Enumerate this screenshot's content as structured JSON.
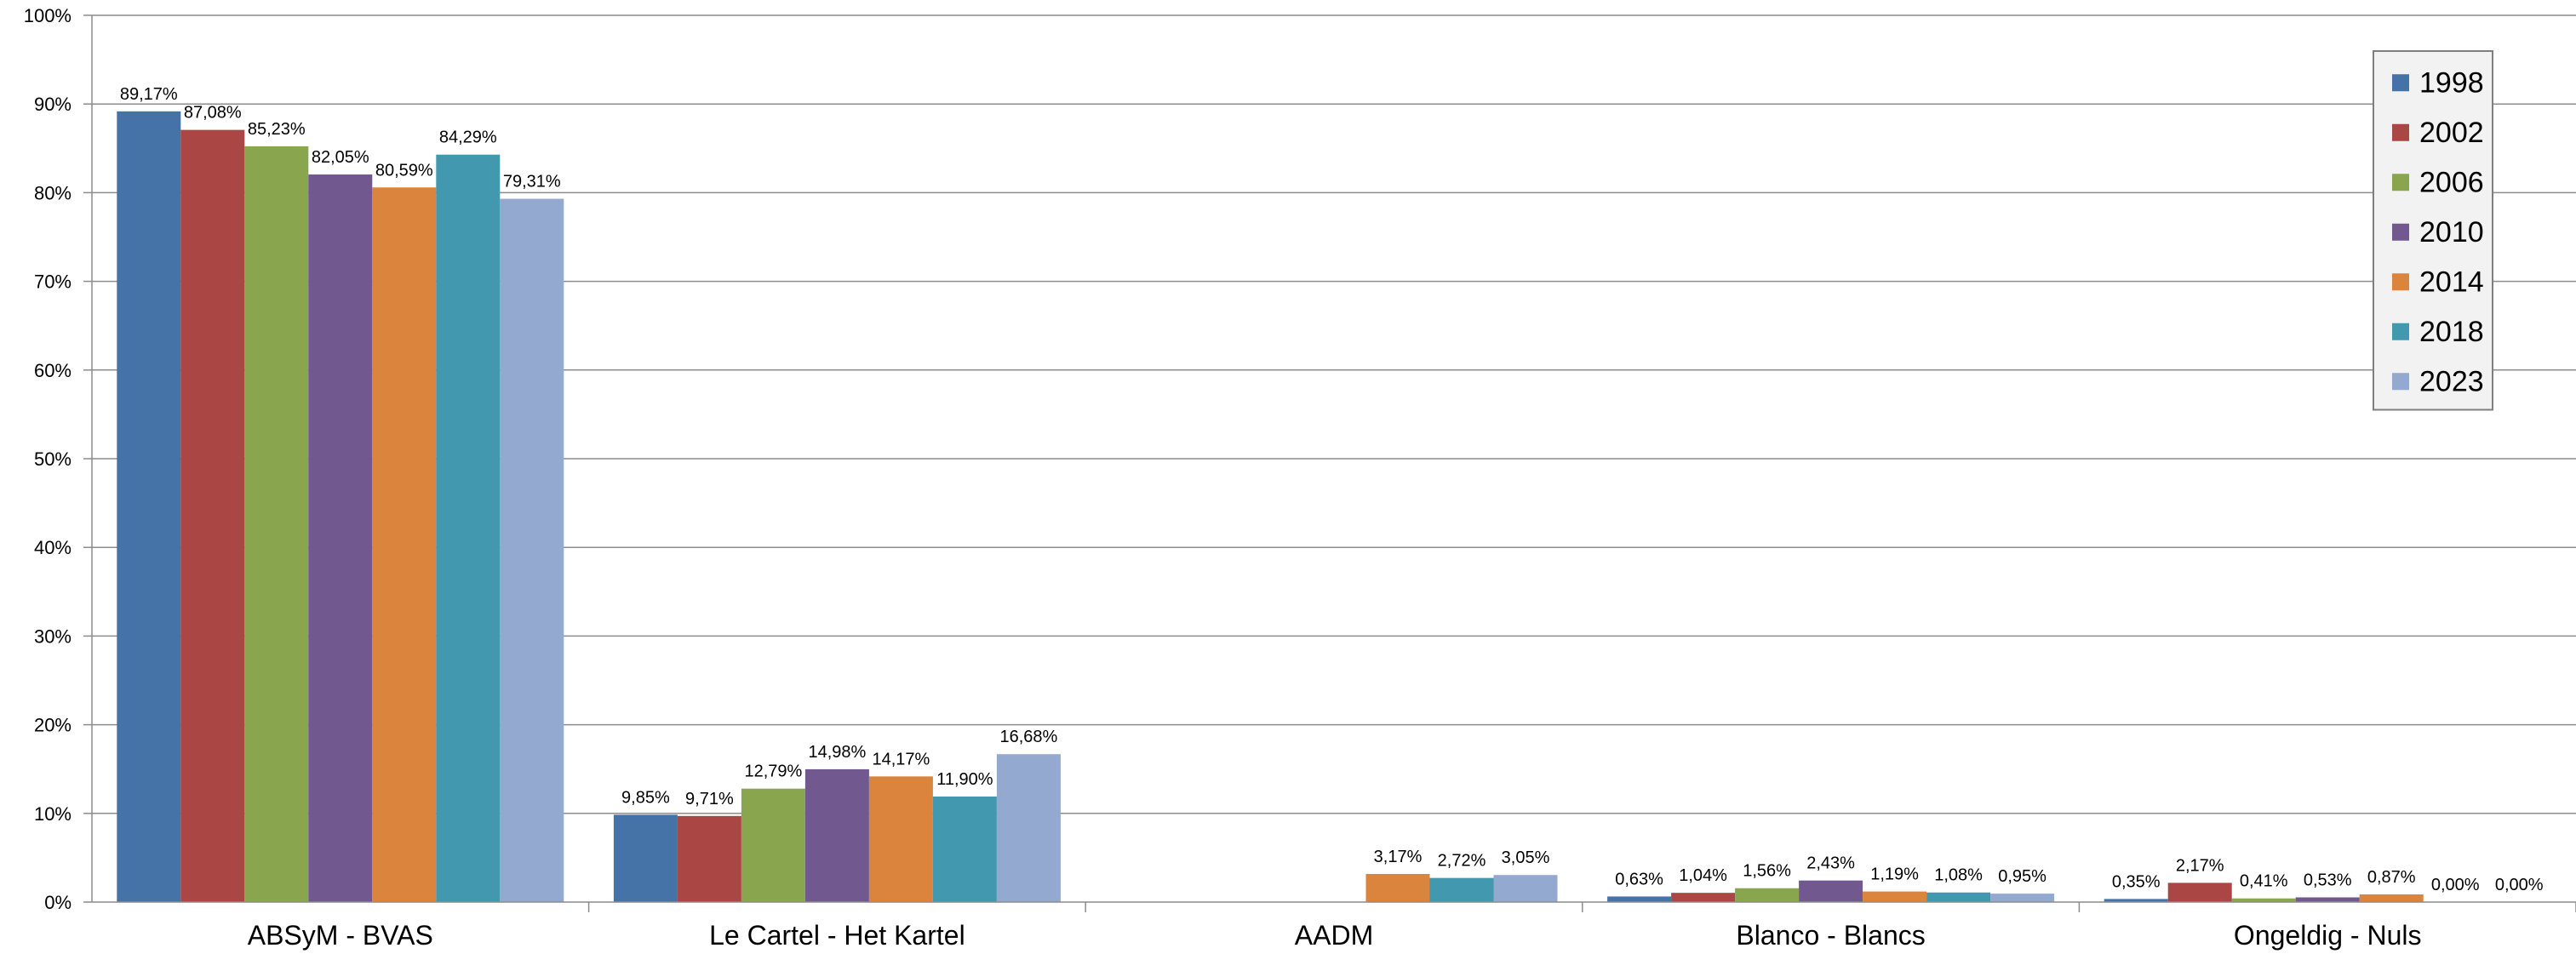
{
  "chart_data": {
    "type": "bar",
    "categories": [
      "ABSyM - BVAS",
      "Le Cartel - Het Kartel",
      "AADM",
      "Blanco - Blancs",
      "Ongeldig - Nuls"
    ],
    "series": [
      {
        "name": "1998",
        "color": "#4572A7",
        "values": [
          89.17,
          9.85,
          null,
          0.63,
          0.35
        ],
        "labels": [
          "89,17%",
          "9,85%",
          "",
          "0,63%",
          "0,35%"
        ]
      },
      {
        "name": "2002",
        "color": "#AA4643",
        "values": [
          87.08,
          9.71,
          null,
          1.04,
          2.17
        ],
        "labels": [
          "87,08%",
          "9,71%",
          "",
          "1,04%",
          "2,17%"
        ]
      },
      {
        "name": "2006",
        "color": "#89A54E",
        "values": [
          85.23,
          12.79,
          null,
          1.56,
          0.41
        ],
        "labels": [
          "85,23%",
          "12,79%",
          "",
          "1,56%",
          "0,41%"
        ]
      },
      {
        "name": "2010",
        "color": "#71588F",
        "values": [
          82.05,
          14.98,
          null,
          2.43,
          0.53
        ],
        "labels": [
          "82,05%",
          "14,98%",
          "",
          "2,43%",
          "0,53%"
        ]
      },
      {
        "name": "2014",
        "color": "#DB843D",
        "values": [
          80.59,
          14.17,
          3.17,
          1.19,
          0.87
        ],
        "labels": [
          "80,59%",
          "14,17%",
          "3,17%",
          "1,19%",
          "0,87%"
        ]
      },
      {
        "name": "2018",
        "color": "#4198AF",
        "values": [
          84.29,
          11.9,
          2.72,
          1.08,
          0.0
        ],
        "labels": [
          "84,29%",
          "11,90%",
          "2,72%",
          "1,08%",
          "0,00%"
        ]
      },
      {
        "name": "2023",
        "color": "#93A9CF",
        "values": [
          79.31,
          16.68,
          3.05,
          0.95,
          0.0
        ],
        "labels": [
          "79,31%",
          "16,68%",
          "3,05%",
          "0,95%",
          "0,00%"
        ]
      }
    ],
    "yticks": [
      "0%",
      "10%",
      "20%",
      "30%",
      "40%",
      "50%",
      "60%",
      "70%",
      "80%",
      "90%",
      "100%"
    ],
    "ylim": [
      0,
      100
    ],
    "grid": true,
    "legend_position": "top-right",
    "title": "",
    "xlabel": "",
    "ylabel": ""
  }
}
